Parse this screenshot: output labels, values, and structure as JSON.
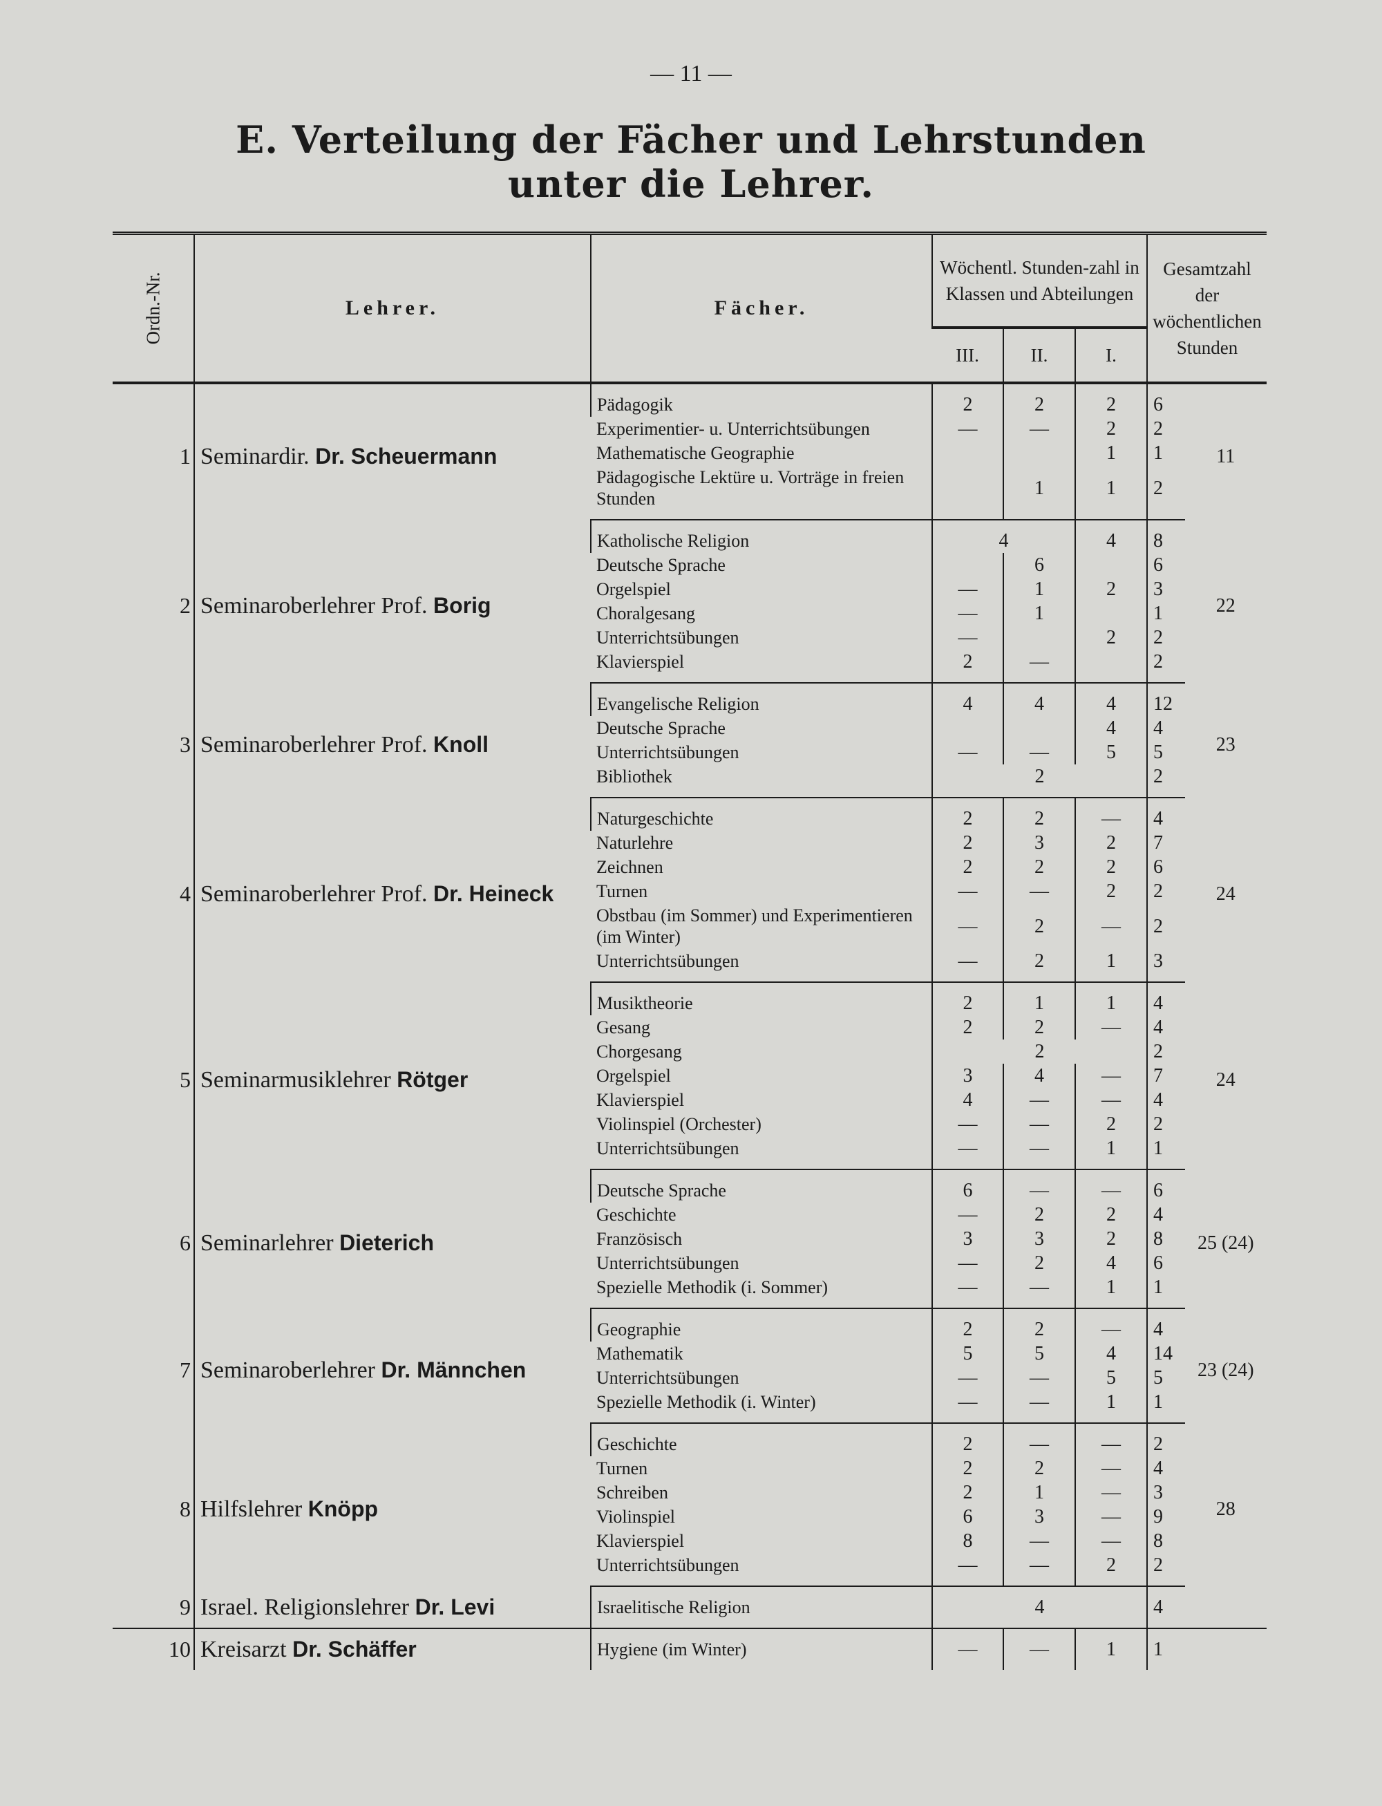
{
  "page_number": "— 11 —",
  "title": [
    "E. Verteilung der Fächer und Lehrstunden",
    "unter die Lehrer."
  ],
  "table": {
    "headers": {
      "number": "Ordn.-Nr.",
      "teacher": "Lehrer.",
      "subjects": "Fächer.",
      "hours": "Wöchentl. Stunden-zahl in Klassen und Abteilungen",
      "classes": [
        "III.",
        "II.",
        "I."
      ],
      "total": "Gesamtzahl der wöchentlichen Stunden"
    },
    "groups": [
      {
        "number": 1,
        "title": "Seminardir.",
        "name": "Dr. Scheuermann",
        "total": 11,
        "subjects": [
          {
            "name": "Pädagogik",
            "hours": [
              2,
              2,
              2
            ],
            "total": 6
          },
          {
            "name": "Experimentier- u. Unterrichtsübungen",
            "hours": [
              "—",
              "—",
              2
            ],
            "total": 2
          },
          {
            "name": "Mathematische Geographie",
            "hours": [
              null,
              null,
              1
            ],
            "total": 1
          },
          {
            "name": "Pädagogische Lektüre u. Vorträge in freien Stunden",
            "hours": [
              null,
              1,
              1
            ],
            "total": 2
          }
        ]
      },
      {
        "number": 2,
        "title": "Seminaroberlehrer Prof.",
        "name": "Borig",
        "total": 22,
        "subjects": [
          {
            "name": "Katholische Religion",
            "hours": [
              4,
              4
            ],
            "total": 8
          },
          {
            "name": "Deutsche Sprache",
            "hours": [
              null,
              6,
              null
            ],
            "total": 6
          },
          {
            "name": "Orgelspiel",
            "hours": [
              "—",
              1,
              2
            ],
            "total": 3
          },
          {
            "name": "Choralgesang",
            "hours": [
              "—",
              1,
              null
            ],
            "total": 1
          },
          {
            "name": "Unterrichtsübungen",
            "hours": [
              "—",
              null,
              2
            ],
            "total": 2
          },
          {
            "name": "Klavierspiel",
            "hours": [
              2,
              "—",
              null
            ],
            "total": 2
          }
        ]
      },
      {
        "number": 3,
        "title": "Seminaroberlehrer Prof.",
        "name": "Knoll",
        "total": 23,
        "subjects": [
          {
            "name": "Evangelische Religion",
            "hours": [
              4,
              4,
              4
            ],
            "total": 12
          },
          {
            "name": "Deutsche Sprache",
            "hours": [
              null,
              null,
              4
            ],
            "total": 4
          },
          {
            "name": "Unterrichtsübungen",
            "hours": [
              "—",
              "—",
              5
            ],
            "total": 5
          },
          {
            "name": "Bibliothek",
            "hours": [
              2
            ],
            "total": 2
          }
        ]
      },
      {
        "number": 4,
        "title": "Seminaroberlehrer Prof.",
        "name": "Dr. Heineck",
        "total": 24,
        "subjects": [
          {
            "name": "Naturgeschichte",
            "hours": [
              2,
              2,
              "—"
            ],
            "total": 4
          },
          {
            "name": "Naturlehre",
            "hours": [
              2,
              3,
              2
            ],
            "total": 7
          },
          {
            "name": "Zeichnen",
            "hours": [
              2,
              2,
              2
            ],
            "total": 6
          },
          {
            "name": "Turnen",
            "hours": [
              "—",
              "—",
              2
            ],
            "total": 2
          },
          {
            "name": "Obstbau (im Sommer) und Experimentieren (im Winter)",
            "hours": [
              "—",
              2,
              "—"
            ],
            "total": 2
          },
          {
            "name": "Unterrichtsübungen",
            "hours": [
              "—",
              2,
              1
            ],
            "total": 3
          }
        ]
      },
      {
        "number": 5,
        "title": "Seminarmusiklehrer",
        "name": "Rötger",
        "total": 24,
        "subjects": [
          {
            "name": "Musiktheorie",
            "hours": [
              2,
              1,
              1
            ],
            "total": 4
          },
          {
            "name": "Gesang",
            "hours": [
              2,
              2,
              "—"
            ],
            "total": 4
          },
          {
            "name": "Chorgesang",
            "hours": [
              2
            ],
            "total": 2
          },
          {
            "name": "Orgelspiel",
            "hours": [
              3,
              4,
              "—"
            ],
            "total": 7
          },
          {
            "name": "Klavierspiel",
            "hours": [
              4,
              "—",
              "—"
            ],
            "total": 4
          },
          {
            "name": "Violinspiel (Orchester)",
            "hours": [
              "—",
              "—",
              2
            ],
            "total": 2
          },
          {
            "name": "Unterrichtsübungen",
            "hours": [
              "—",
              "—",
              1
            ],
            "total": 1
          }
        ]
      },
      {
        "number": 6,
        "title": "Seminarlehrer",
        "name": "Dieterich",
        "total": "25 (24)",
        "subjects": [
          {
            "name": "Deutsche Sprache",
            "hours": [
              6,
              "—",
              "—"
            ],
            "total": 6
          },
          {
            "name": "Geschichte",
            "hours": [
              "—",
              2,
              2
            ],
            "total": 4
          },
          {
            "name": "Französisch",
            "hours": [
              3,
              3,
              2
            ],
            "total": 8
          },
          {
            "name": "Unterrichtsübungen",
            "hours": [
              "—",
              2,
              4
            ],
            "total": 6
          },
          {
            "name": "Spezielle Methodik (i. Sommer)",
            "hours": [
              "—",
              "—",
              1
            ],
            "total": 1
          }
        ]
      },
      {
        "number": 7,
        "title": "Seminaroberlehrer",
        "name": "Dr. Männchen",
        "total": "23 (24)",
        "subjects": [
          {
            "name": "Geographie",
            "hours": [
              2,
              2,
              "—"
            ],
            "total": 4
          },
          {
            "name": "Mathematik",
            "hours": [
              5,
              5,
              4
            ],
            "total": 14
          },
          {
            "name": "Unterrichtsübungen",
            "hours": [
              "—",
              "—",
              5
            ],
            "total": 5
          },
          {
            "name": "Spezielle Methodik (i. Winter)",
            "hours": [
              "—",
              "—",
              1
            ],
            "total": 1
          }
        ]
      },
      {
        "number": 8,
        "title": "Hilfslehrer",
        "name": "Knöpp",
        "total": 28,
        "subjects": [
          {
            "name": "Geschichte",
            "hours": [
              2,
              "—",
              "—"
            ],
            "total": 2
          },
          {
            "name": "Turnen",
            "hours": [
              2,
              2,
              "—"
            ],
            "total": 4
          },
          {
            "name": "Schreiben",
            "hours": [
              2,
              1,
              "—"
            ],
            "total": 3
          },
          {
            "name": "Violinspiel",
            "hours": [
              6,
              3,
              "—"
            ],
            "total": 9
          },
          {
            "name": "Klavierspiel",
            "hours": [
              8,
              "—",
              "—"
            ],
            "total": 8
          },
          {
            "name": "Unterrichtsübungen",
            "hours": [
              "—",
              "—",
              2
            ],
            "total": 2
          }
        ]
      },
      {
        "number": 9,
        "title": "Israel. Religionslehrer",
        "name": "Dr. Levi",
        "subjects": [
          {
            "name": "Israelitische Religion",
            "hours": [
              4
            ],
            "total": 4
          }
        ]
      },
      {
        "number": 10,
        "title": "Kreisarzt",
        "name": "Dr. Schäffer",
        "subjects": [
          {
            "name": "Hygiene (im Winter)",
            "hours": [
              "—",
              "—",
              1
            ],
            "total": 1
          }
        ]
      }
    ]
  }
}
